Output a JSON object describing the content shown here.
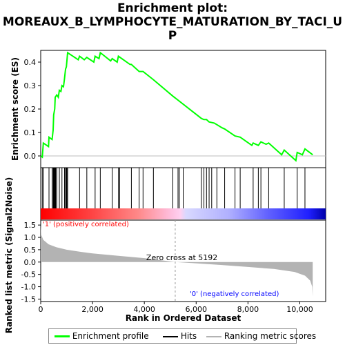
{
  "title_line1": "Enrichment plot:",
  "title_line2": "MOREAUX_B_LYMPHOCYTE_MATURATION_BY_TACI_U",
  "title_line3": "P",
  "chart_data": {
    "type": "line",
    "x_axis": {
      "label": "Rank in Ordered Dataset",
      "range": [
        0,
        11000
      ],
      "ticks": [
        0,
        2000,
        4000,
        6000,
        8000,
        10000
      ],
      "tick_labels": [
        "0",
        "2,000",
        "4,000",
        "6,000",
        "8,000",
        "10,000"
      ]
    },
    "es_panel": {
      "ylabel": "Enrichment score (ES)",
      "ylim": [
        -0.05,
        0.45
      ],
      "yticks": [
        0.0,
        0.1,
        0.2,
        0.3,
        0.4
      ],
      "ytick_labels": [
        "0.0",
        "0.1",
        "0.2",
        "0.3",
        "0.4"
      ],
      "series_name": "Enrichment profile",
      "color": "#00ff00",
      "points": [
        [
          0,
          0.0
        ],
        [
          60,
          -0.005
        ],
        [
          100,
          0.055
        ],
        [
          300,
          0.04
        ],
        [
          320,
          0.08
        ],
        [
          440,
          0.07
        ],
        [
          480,
          0.11
        ],
        [
          500,
          0.175
        ],
        [
          540,
          0.2
        ],
        [
          560,
          0.25
        ],
        [
          620,
          0.26
        ],
        [
          680,
          0.25
        ],
        [
          720,
          0.28
        ],
        [
          780,
          0.275
        ],
        [
          820,
          0.3
        ],
        [
          880,
          0.295
        ],
        [
          920,
          0.33
        ],
        [
          960,
          0.37
        ],
        [
          990,
          0.38
        ],
        [
          1040,
          0.44
        ],
        [
          1450,
          0.41
        ],
        [
          1500,
          0.425
        ],
        [
          1680,
          0.41
        ],
        [
          1780,
          0.42
        ],
        [
          2050,
          0.4
        ],
        [
          2100,
          0.425
        ],
        [
          2250,
          0.415
        ],
        [
          2300,
          0.44
        ],
        [
          2700,
          0.405
        ],
        [
          2760,
          0.415
        ],
        [
          2950,
          0.4
        ],
        [
          3000,
          0.425
        ],
        [
          3450,
          0.39
        ],
        [
          3500,
          0.39
        ],
        [
          3800,
          0.36
        ],
        [
          3950,
          0.36
        ],
        [
          4350,
          0.325
        ],
        [
          5100,
          0.255
        ],
        [
          6200,
          0.16
        ],
        [
          6300,
          0.155
        ],
        [
          6400,
          0.155
        ],
        [
          6500,
          0.145
        ],
        [
          6700,
          0.14
        ],
        [
          7000,
          0.12
        ],
        [
          7100,
          0.115
        ],
        [
          7500,
          0.085
        ],
        [
          7700,
          0.08
        ],
        [
          8150,
          0.045
        ],
        [
          8200,
          0.055
        ],
        [
          8400,
          0.045
        ],
        [
          8500,
          0.06
        ],
        [
          8700,
          0.05
        ],
        [
          8800,
          0.055
        ],
        [
          9300,
          0.005
        ],
        [
          9400,
          0.025
        ],
        [
          9850,
          -0.02
        ],
        [
          9900,
          0.015
        ],
        [
          10100,
          0.005
        ],
        [
          10200,
          0.03
        ],
        [
          10500,
          0.005
        ]
      ]
    },
    "hits": {
      "name": "Hits",
      "positions": [
        60,
        100,
        320,
        440,
        480,
        500,
        520,
        540,
        560,
        580,
        620,
        720,
        820,
        920,
        960,
        990,
        1010,
        1040,
        1500,
        1780,
        2100,
        2300,
        2760,
        3000,
        3050,
        3500,
        3800,
        3950,
        4350,
        5100,
        5300,
        5350,
        5500,
        6200,
        6300,
        6400,
        6500,
        6600,
        6800,
        7100,
        7500,
        7700,
        8200,
        8400,
        8500,
        8800,
        9400,
        9900,
        10200
      ]
    },
    "ranked_metric": {
      "name": "Ranking metric scores",
      "ylabel": "Ranked list metric (Signal2Noise)",
      "ylim": [
        -1.6,
        1.7
      ],
      "yticks": [
        -1.5,
        -1.0,
        -0.5,
        0.0,
        0.5,
        1.0,
        1.5
      ],
      "ytick_labels": [
        "-1.5",
        "-1.0",
        "-0.5",
        "0.0",
        "0.5",
        "1.0",
        "1.5"
      ],
      "points": [
        [
          0,
          1.55
        ],
        [
          20,
          1.1
        ],
        [
          100,
          0.9
        ],
        [
          300,
          0.72
        ],
        [
          600,
          0.6
        ],
        [
          1000,
          0.5
        ],
        [
          1500,
          0.42
        ],
        [
          2000,
          0.35
        ],
        [
          3000,
          0.25
        ],
        [
          4000,
          0.16
        ],
        [
          5192,
          0.0
        ],
        [
          6000,
          -0.05
        ],
        [
          7000,
          -0.12
        ],
        [
          8000,
          -0.2
        ],
        [
          9000,
          -0.28
        ],
        [
          9800,
          -0.4
        ],
        [
          10200,
          -0.55
        ],
        [
          10400,
          -0.75
        ],
        [
          10480,
          -1.0
        ],
        [
          10500,
          -1.4
        ]
      ],
      "zero_cross_label": "Zero cross at 5192",
      "zero_cross": 5192,
      "pos_label": "'1' (positively correlated)",
      "neg_label": "'0' (negatively correlated)"
    }
  },
  "legend": {
    "enrichment": "Enrichment profile",
    "hits": "Hits",
    "ranking": "Ranking metric scores"
  },
  "colors": {
    "enrichment": "#00ff00",
    "hits": "#000000",
    "ranking_fill": "#b3b3b3",
    "positive_text": "#ff0000",
    "negative_text": "#0000ff"
  }
}
